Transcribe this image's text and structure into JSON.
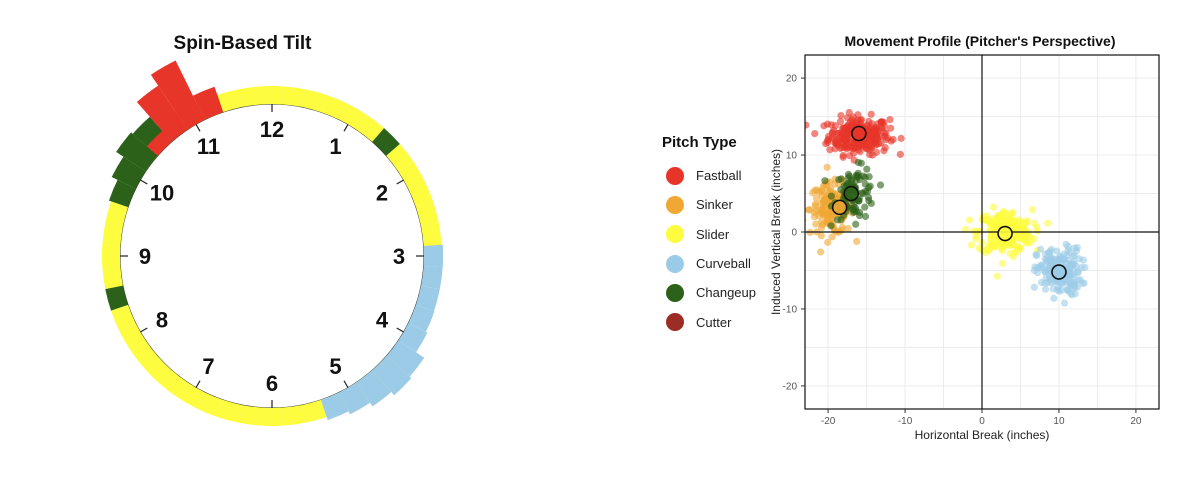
{
  "legend": {
    "title": "Pitch Type",
    "items": [
      {
        "label": "Fastball",
        "color": "#e8352a"
      },
      {
        "label": "Sinker",
        "color": "#f0a733"
      },
      {
        "label": "Slider",
        "color": "#fdfc3e"
      },
      {
        "label": "Curveball",
        "color": "#9ccbe8"
      },
      {
        "label": "Changeup",
        "color": "#2b6118"
      },
      {
        "label": "Cutter",
        "color": "#9b2d24"
      }
    ]
  },
  "chart_data": [
    {
      "type": "polar_histogram",
      "title": "Spin-Based Tilt",
      "clock_labels": [
        "12",
        "1",
        "2",
        "3",
        "4",
        "5",
        "6",
        "7",
        "8",
        "9",
        "10",
        "11"
      ],
      "bin_width_hours": 0.25,
      "series": [
        {
          "name": "Slider",
          "color": "#fdfc3e",
          "bins": [
            {
              "tilt_hours": 11.0,
              "value": 1
            },
            {
              "tilt_hours": 11.25,
              "value": 1
            },
            {
              "tilt_hours": 11.5,
              "value": 1
            },
            {
              "tilt_hours": 11.75,
              "value": 1
            },
            {
              "tilt_hours": 12.0,
              "value": 1
            },
            {
              "tilt_hours": 0.25,
              "value": 1
            },
            {
              "tilt_hours": 0.5,
              "value": 1
            },
            {
              "tilt_hours": 0.75,
              "value": 1
            },
            {
              "tilt_hours": 1.0,
              "value": 1
            },
            {
              "tilt_hours": 1.25,
              "value": 1
            },
            {
              "tilt_hours": 1.75,
              "value": 1
            },
            {
              "tilt_hours": 2.0,
              "value": 1
            },
            {
              "tilt_hours": 2.25,
              "value": 1
            },
            {
              "tilt_hours": 2.5,
              "value": 1
            },
            {
              "tilt_hours": 2.75,
              "value": 1
            },
            {
              "tilt_hours": 4.5,
              "value": 1
            },
            {
              "tilt_hours": 4.75,
              "value": 1
            },
            {
              "tilt_hours": 5.0,
              "value": 1
            },
            {
              "tilt_hours": 5.25,
              "value": 1
            },
            {
              "tilt_hours": 5.5,
              "value": 1
            },
            {
              "tilt_hours": 5.75,
              "value": 1
            },
            {
              "tilt_hours": 6.0,
              "value": 1
            },
            {
              "tilt_hours": 6.25,
              "value": 1
            },
            {
              "tilt_hours": 6.5,
              "value": 1
            },
            {
              "tilt_hours": 6.75,
              "value": 1
            },
            {
              "tilt_hours": 7.0,
              "value": 1
            },
            {
              "tilt_hours": 7.25,
              "value": 1
            },
            {
              "tilt_hours": 7.5,
              "value": 1
            },
            {
              "tilt_hours": 7.75,
              "value": 1
            },
            {
              "tilt_hours": 8.0,
              "value": 1
            },
            {
              "tilt_hours": 8.25,
              "value": 1
            },
            {
              "tilt_hours": 8.75,
              "value": 1
            },
            {
              "tilt_hours": 9.0,
              "value": 1
            },
            {
              "tilt_hours": 9.25,
              "value": 1
            },
            {
              "tilt_hours": 9.5,
              "value": 1
            },
            {
              "tilt_hours": 10.25,
              "value": 1
            }
          ]
        },
        {
          "name": "Curveball",
          "color": "#9ccbe8",
          "bins": [
            {
              "tilt_hours": 3.0,
              "value": 1.1
            },
            {
              "tilt_hours": 3.25,
              "value": 1.1
            },
            {
              "tilt_hours": 3.5,
              "value": 1.1
            },
            {
              "tilt_hours": 3.75,
              "value": 1.15
            },
            {
              "tilt_hours": 4.0,
              "value": 1.3
            },
            {
              "tilt_hours": 4.25,
              "value": 2.2
            },
            {
              "tilt_hours": 4.5,
              "value": 2.4
            },
            {
              "tilt_hours": 4.75,
              "value": 2.0
            },
            {
              "tilt_hours": 5.0,
              "value": 1.6
            },
            {
              "tilt_hours": 5.25,
              "value": 1.3
            }
          ]
        },
        {
          "name": "Changeup",
          "color": "#2b6118",
          "bins": [
            {
              "tilt_hours": 11.25,
              "value": 1
            },
            {
              "tilt_hours": 1.5,
              "value": 1
            },
            {
              "tilt_hours": 10.75,
              "value": 1.4
            },
            {
              "tilt_hours": 10.5,
              "value": 2.4
            },
            {
              "tilt_hours": 10.25,
              "value": 2.6
            },
            {
              "tilt_hours": 10.0,
              "value": 1.8
            },
            {
              "tilt_hours": 9.75,
              "value": 1.2
            },
            {
              "tilt_hours": 8.5,
              "value": 1
            }
          ]
        },
        {
          "name": "Fastball",
          "color": "#e8352a",
          "bins": [
            {
              "tilt_hours": 10.5,
              "value": 0.8
            },
            {
              "tilt_hours": 10.75,
              "value": 4.2
            },
            {
              "tilt_hours": 11.0,
              "value": 5.4
            },
            {
              "tilt_hours": 11.25,
              "value": 1.8
            }
          ]
        }
      ]
    },
    {
      "type": "scatter",
      "title": "Movement Profile (Pitcher's Perspective)",
      "xlabel": "Horizontal Break (inches)",
      "ylabel": "Induced Vertical Break (inches)",
      "xlim": [
        -23,
        23
      ],
      "ylim": [
        -23,
        23
      ],
      "xticks": [
        -20,
        -10,
        0,
        10,
        20
      ],
      "yticks": [
        -20,
        -10,
        0,
        10,
        20
      ],
      "grid": true,
      "series": [
        {
          "name": "Fastball",
          "color": "#e8352a",
          "center": [
            -16,
            12.5
          ],
          "spread": [
            3.6,
            2.2
          ],
          "n": 260,
          "mean": [
            -16,
            12.8
          ]
        },
        {
          "name": "Sinker",
          "color": "#f0a733",
          "center": [
            -19.5,
            3
          ],
          "spread": [
            2.6,
            3.0
          ],
          "n": 170,
          "mean": [
            -18.5,
            3.2
          ]
        },
        {
          "name": "Changeup",
          "color": "#2b6118",
          "center": [
            -16.5,
            5
          ],
          "spread": [
            2.5,
            3.0
          ],
          "n": 90,
          "mean": [
            -17,
            5
          ]
        },
        {
          "name": "Slider",
          "color": "#fdfc3e",
          "center": [
            3,
            0
          ],
          "spread": [
            3.2,
            2.6
          ],
          "n": 230,
          "mean": [
            3,
            -0.2
          ]
        },
        {
          "name": "Curveball",
          "color": "#9ccbe8",
          "center": [
            10,
            -5.2
          ],
          "spread": [
            2.6,
            2.8
          ],
          "n": 180,
          "mean": [
            10,
            -5.2
          ]
        }
      ]
    }
  ]
}
